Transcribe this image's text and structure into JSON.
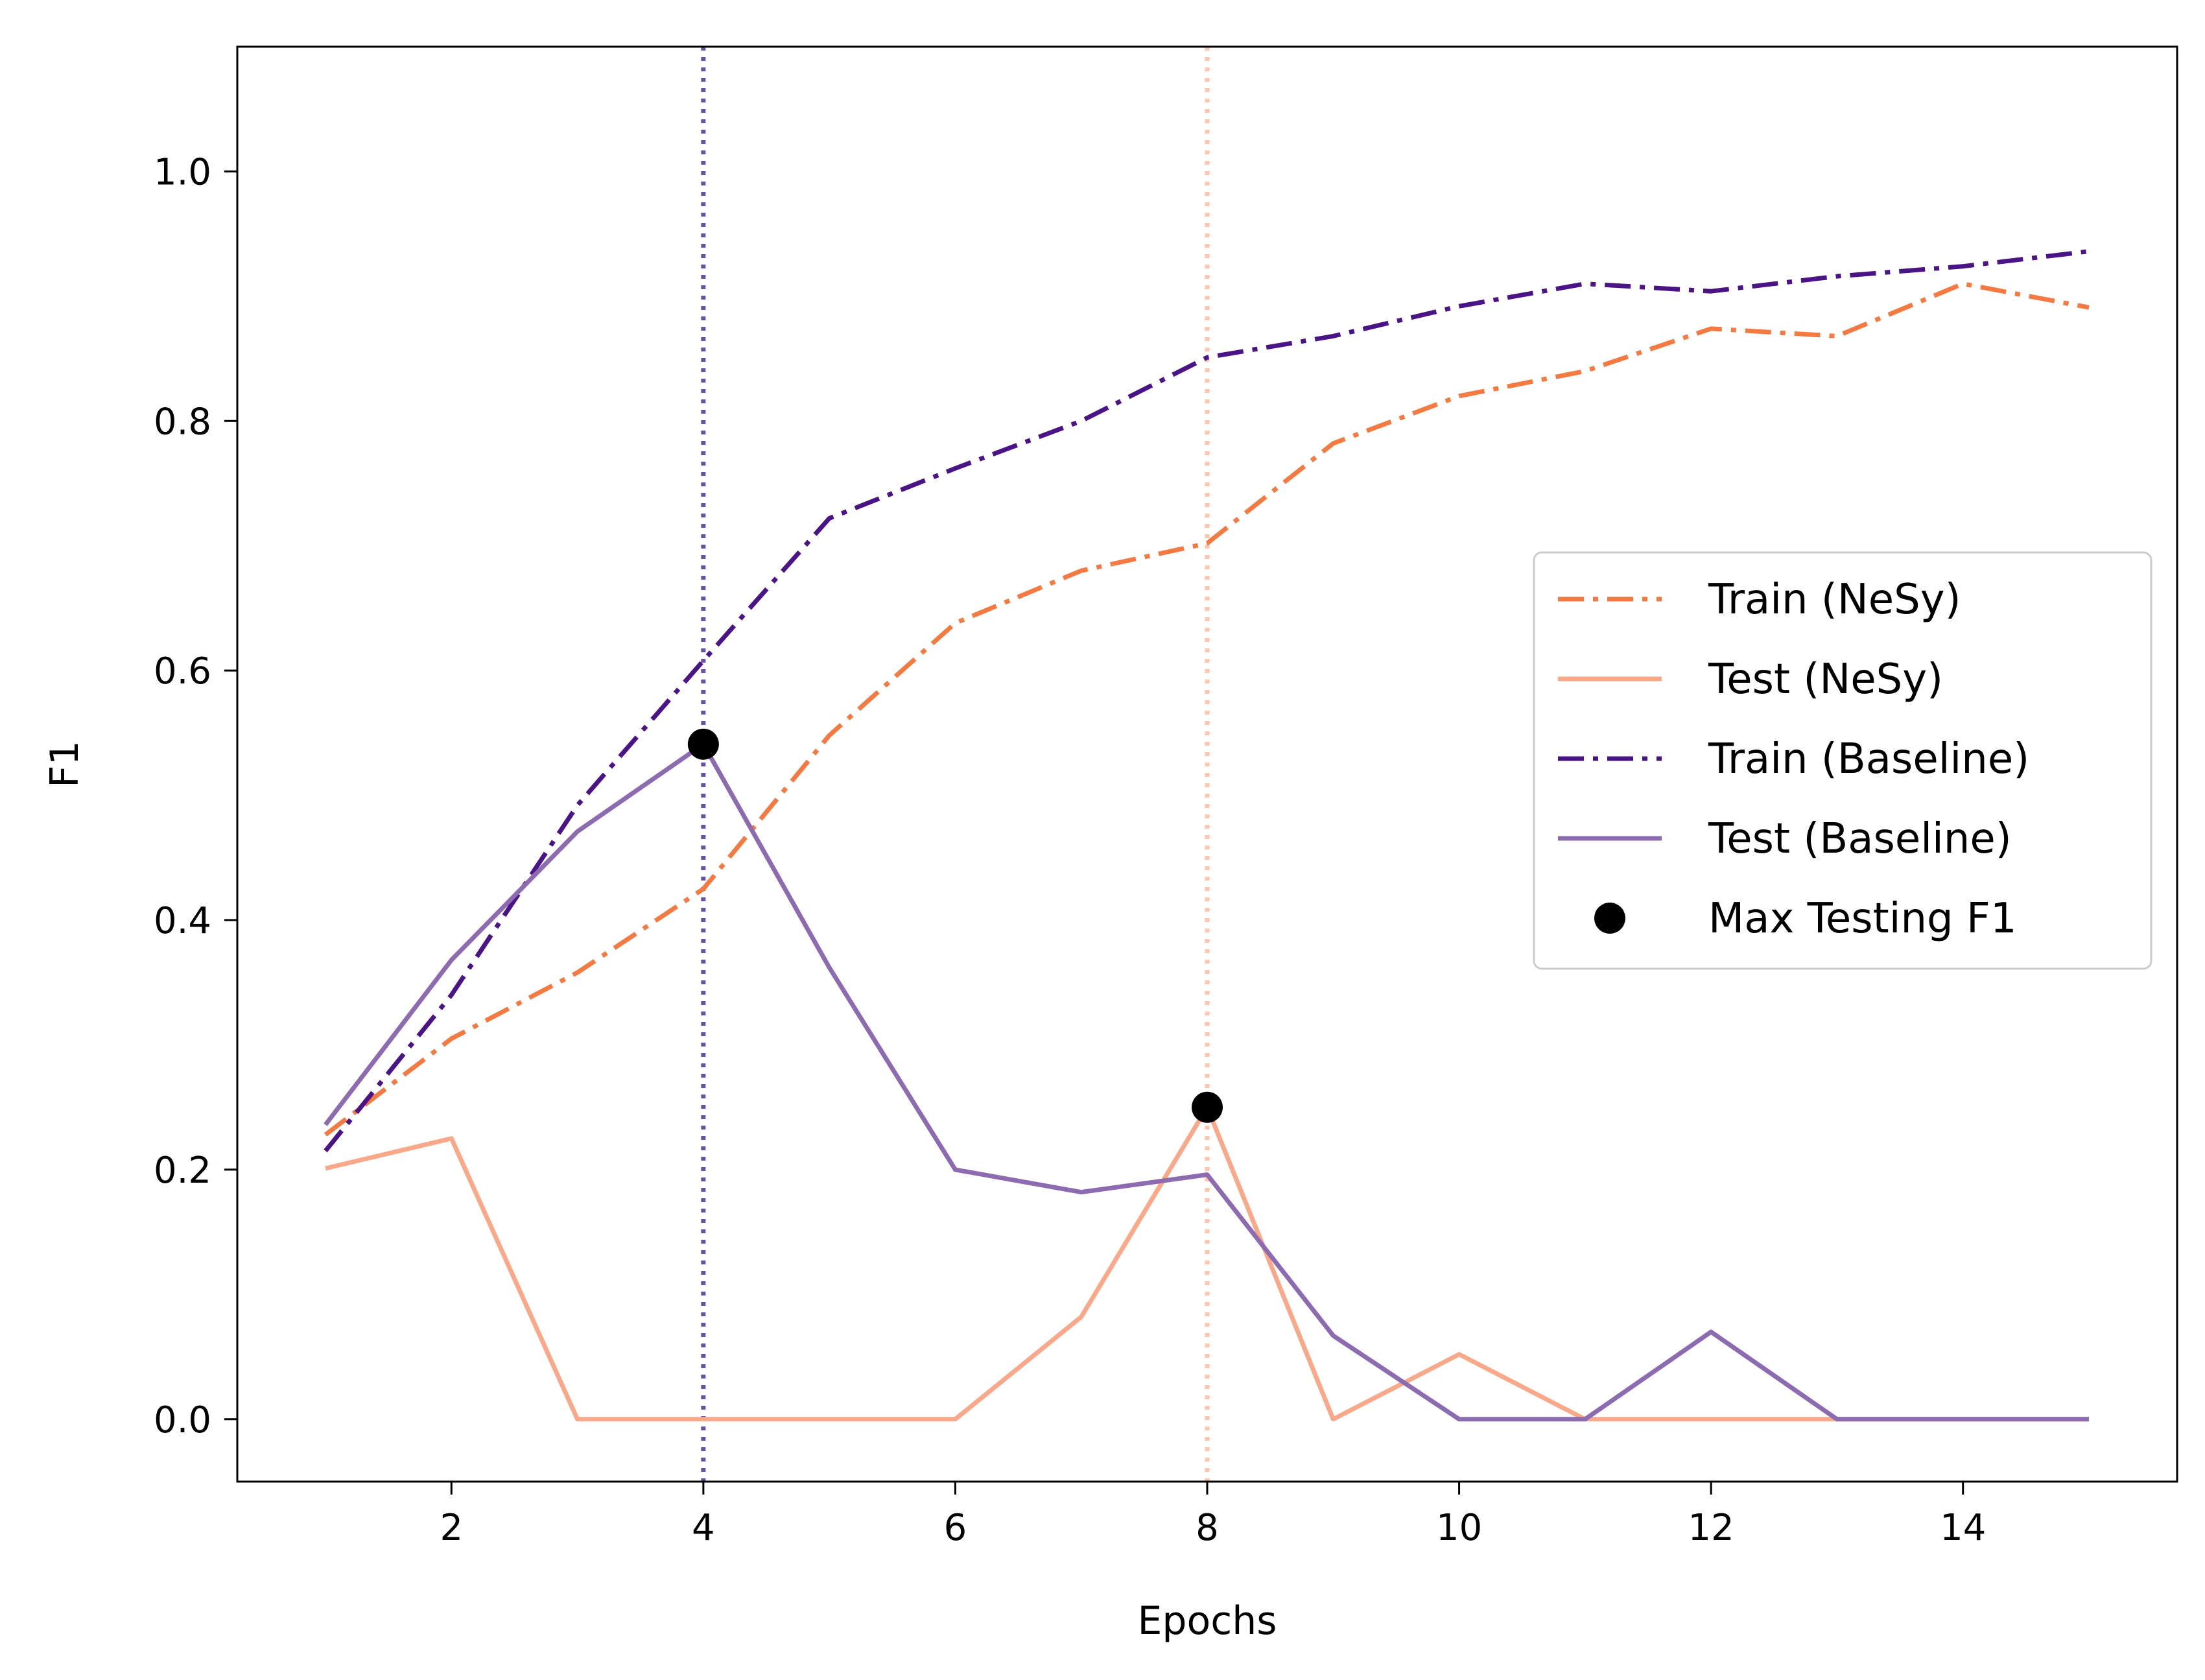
{
  "chart_data": {
    "type": "line",
    "xlabel": "Epochs",
    "ylabel": "F1",
    "xlim": [
      0.3,
      15.7
    ],
    "ylim": [
      -0.05,
      1.1
    ],
    "grid": false,
    "legend_position": "center-right",
    "x_ticks": [
      {
        "value": 2,
        "label": "2"
      },
      {
        "value": 4,
        "label": "4"
      },
      {
        "value": 6,
        "label": "6"
      },
      {
        "value": 8,
        "label": "8"
      },
      {
        "value": 10,
        "label": "10"
      },
      {
        "value": 12,
        "label": "12"
      },
      {
        "value": 14,
        "label": "14"
      }
    ],
    "y_ticks": [
      {
        "value": 0.0,
        "label": "0.0"
      },
      {
        "value": 0.2,
        "label": "0.2"
      },
      {
        "value": 0.4,
        "label": "0.4"
      },
      {
        "value": 0.6,
        "label": "0.6"
      },
      {
        "value": 0.8,
        "label": "0.8"
      },
      {
        "value": 1.0,
        "label": "1.0"
      }
    ],
    "x": [
      1,
      2,
      3,
      4,
      5,
      6,
      7,
      8,
      9,
      10,
      11,
      12,
      13,
      14,
      15
    ],
    "series": [
      {
        "name": "Train (NeSy)",
        "style": "dashdot",
        "color": "#f47a42",
        "values": [
          0.228,
          0.305,
          0.358,
          0.425,
          0.548,
          0.638,
          0.68,
          0.702,
          0.782,
          0.82,
          0.84,
          0.874,
          0.868,
          0.91,
          0.891
        ]
      },
      {
        "name": "Test (NeSy)",
        "style": "solid",
        "color": "#f9a989",
        "values": [
          0.201,
          0.225,
          0.0,
          0.0,
          0.0,
          0.0,
          0.082,
          0.25,
          0.0,
          0.052,
          0.0,
          0.0,
          0.0,
          0.0,
          0.0
        ]
      },
      {
        "name": "Train (Baseline)",
        "style": "dashdot",
        "color": "#4a1486",
        "values": [
          0.215,
          0.34,
          0.492,
          0.608,
          0.722,
          0.762,
          0.8,
          0.851,
          0.868,
          0.892,
          0.91,
          0.904,
          0.916,
          0.924,
          0.936
        ]
      },
      {
        "name": "Test (Baseline)",
        "style": "solid",
        "color": "#8c6bb1",
        "values": [
          0.236,
          0.368,
          0.471,
          0.541,
          0.362,
          0.2,
          0.182,
          0.196,
          0.067,
          0.0,
          0.0,
          0.07,
          0.0,
          0.0,
          0.0
        ]
      }
    ],
    "vlines": [
      {
        "x": 4,
        "color": "#6a51a3",
        "style": "dotted"
      },
      {
        "x": 8,
        "color": "#fcc5ad",
        "style": "dotted"
      }
    ],
    "max_points": {
      "name": "Max Testing F1",
      "color": "#000000",
      "points": [
        {
          "x": 4,
          "y": 0.541
        },
        {
          "x": 8,
          "y": 0.25
        }
      ]
    }
  }
}
